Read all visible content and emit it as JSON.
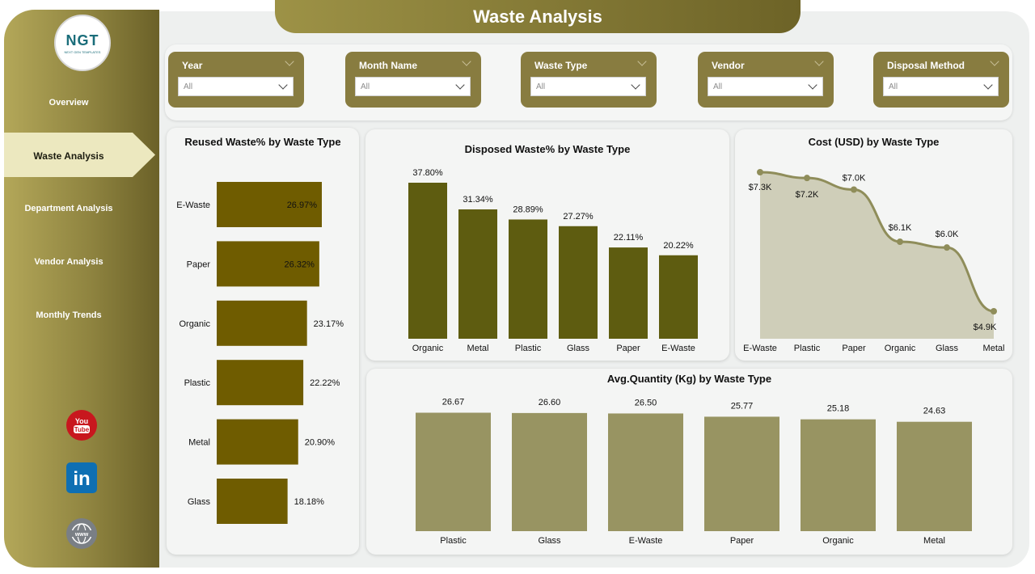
{
  "logo": {
    "text": "NGT",
    "subtext": "NEXT GEN TEMPLATES"
  },
  "header": {
    "title": "Waste Analysis"
  },
  "nav": {
    "items": [
      {
        "label": "Overview"
      },
      {
        "label": "Waste Analysis"
      },
      {
        "label": "Department Analysis"
      },
      {
        "label": "Vendor Analysis"
      },
      {
        "label": "Monthly Trends"
      }
    ],
    "active_index": 1
  },
  "social": [
    {
      "icon": "youtube-icon",
      "text": "You Tube"
    },
    {
      "icon": "linkedin-icon",
      "text": "in"
    },
    {
      "icon": "web-icon",
      "text": "www"
    }
  ],
  "filters": [
    {
      "label": "Year",
      "value": "All"
    },
    {
      "label": "Month Name",
      "value": "All"
    },
    {
      "label": "Waste Type",
      "value": "All"
    },
    {
      "label": "Vendor",
      "value": "All"
    },
    {
      "label": "Disposal Method",
      "value": "All"
    }
  ],
  "colors": {
    "sidebar": "#8f8440",
    "nav_active": "#ece8bf",
    "slicer": "#887c40",
    "bar_reused": "#6f5c00",
    "bar_disposed": "#5e5c10",
    "area_fill": "#cfceb9",
    "line": "#8f8d5a",
    "bar_avg": "#989462"
  },
  "chart_data": [
    {
      "id": "reused",
      "type": "bar",
      "orientation": "horizontal",
      "title": "Reused Waste% by Waste Type",
      "categories": [
        "E-Waste",
        "Paper",
        "Organic",
        "Plastic",
        "Metal",
        "Glass"
      ],
      "values": [
        26.97,
        26.32,
        23.17,
        22.22,
        20.9,
        18.18
      ],
      "labels": [
        "26.97%",
        "26.32%",
        "23.17%",
        "22.22%",
        "20.90%",
        "18.18%"
      ]
    },
    {
      "id": "disposed",
      "type": "bar",
      "title": "Disposed Waste% by Waste Type",
      "categories": [
        "Organic",
        "Metal",
        "Plastic",
        "Glass",
        "Paper",
        "E-Waste"
      ],
      "values": [
        37.8,
        31.34,
        28.89,
        27.27,
        22.11,
        20.22
      ],
      "labels": [
        "37.80%",
        "31.34%",
        "28.89%",
        "27.27%",
        "22.11%",
        "20.22%"
      ]
    },
    {
      "id": "cost",
      "type": "area",
      "title": "Cost (USD) by Waste Type",
      "categories": [
        "E-Waste",
        "Plastic",
        "Paper",
        "Organic",
        "Glass",
        "Metal"
      ],
      "values": [
        7.3,
        7.2,
        7.0,
        6.1,
        6.0,
        4.9
      ],
      "labels": [
        "$7.3K",
        "$7.2K",
        "$7.0K",
        "$6.1K",
        "$6.0K",
        "$4.9K"
      ]
    },
    {
      "id": "avgqty",
      "type": "bar",
      "title": "Avg.Quantity (Kg) by Waste Type",
      "categories": [
        "Plastic",
        "Glass",
        "E-Waste",
        "Paper",
        "Organic",
        "Metal"
      ],
      "values": [
        26.67,
        26.6,
        26.5,
        25.77,
        25.18,
        24.63
      ],
      "labels": [
        "26.67",
        "26.60",
        "26.50",
        "25.77",
        "25.18",
        "24.63"
      ]
    }
  ]
}
